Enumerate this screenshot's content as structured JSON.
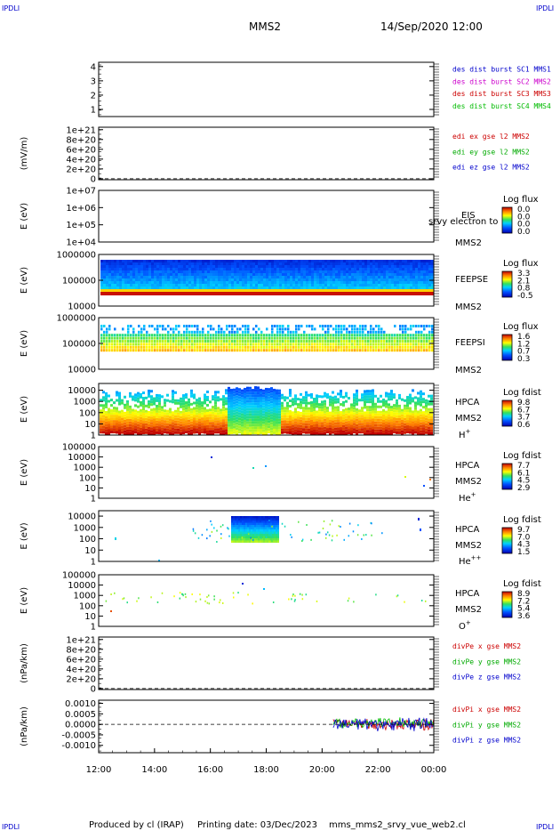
{
  "header": {
    "corner_left": "IPDLI",
    "corner_right": "IPDLI",
    "spacecraft": "MMS2",
    "datetime": "14/Sep/2020 12:00"
  },
  "footer": {
    "corner_left": "IPDLI",
    "corner_right": "IPDLI",
    "producer": "Produced by cl (IRAP)",
    "print_date": "Printing date: 03/Dec/2023",
    "script_name": "mms_mms2_srvy_vue_web2.cl"
  },
  "chart_data": {
    "type": "line",
    "x_ticks": [
      "12:00",
      "14:00",
      "16:00",
      "18:00",
      "20:00",
      "22:00",
      "00:00"
    ],
    "x_range_hours": [
      12,
      24
    ],
    "panels": [
      {
        "id": "des-dist",
        "type": "line",
        "ylabel": "",
        "y_ticks": [
          "4",
          "3",
          "2",
          "1"
        ],
        "ylim": [
          0.5,
          4.3
        ],
        "legend": [
          {
            "text": "des dist burst SC1 MMS1",
            "color": "#0000cc"
          },
          {
            "text": "des dist burst SC2 MMS2",
            "color": "#cc00cc"
          },
          {
            "text": "des dist burst SC3 MMS3",
            "color": "#cc0000"
          },
          {
            "text": "des dist burst SC4 MMS4",
            "color": "#00bb00"
          }
        ]
      },
      {
        "id": "edi-e",
        "type": "line",
        "ylabel": "(mV/m)",
        "y_ticks": [
          "1e+21",
          "8e+20",
          "6e+20",
          "4e+20",
          "2e+20",
          "0"
        ],
        "ylim": [
          -2e+19,
          1.05e+21
        ],
        "zero_line": true,
        "legend": [
          {
            "text": "edi ex gse l2 MMS2",
            "color": "#cc0000"
          },
          {
            "text": "edi ey gse l2 MMS2",
            "color": "#00aa00"
          },
          {
            "text": "edi ez gse l2 MMS2",
            "color": "#0000cc"
          }
        ]
      },
      {
        "id": "eis",
        "type": "heatmap",
        "ylabel": "E (eV)",
        "y_ticks": [
          "1e+07",
          "1e+06",
          "1e+05",
          "1e+04"
        ],
        "yscale": "log",
        "ylim": [
          10000,
          10000000
        ],
        "instrument": "EIS",
        "spacecraft": "MMS2",
        "overlay_text": "srvy electron to",
        "colorbar": {
          "title": "Log flux",
          "ticks": [
            "0.0",
            "0.0",
            "0.0",
            "0.0"
          ]
        }
      },
      {
        "id": "feepse",
        "type": "heatmap",
        "ylabel": "E (eV)",
        "y_ticks": [
          "1000000",
          "100000",
          "10000"
        ],
        "yscale": "log",
        "ylim": [
          10000,
          1000000
        ],
        "instrument": "FEEPSE",
        "spacecraft": "MMS2",
        "colorbar": {
          "title": "Log flux",
          "ticks": [
            "3.3",
            "2.1",
            "0.8",
            "-0.5"
          ]
        }
      },
      {
        "id": "feepsi",
        "type": "heatmap",
        "ylabel": "E (eV)",
        "y_ticks": [
          "1000000",
          "100000",
          "10000"
        ],
        "yscale": "log",
        "ylim": [
          10000,
          1000000
        ],
        "instrument": "FEEPSI",
        "spacecraft": "MMS2",
        "colorbar": {
          "title": "Log flux",
          "ticks": [
            "1.6",
            "1.2",
            "0.7",
            "0.3"
          ]
        }
      },
      {
        "id": "hpca-h",
        "type": "heatmap",
        "ylabel": "E (eV)",
        "y_ticks": [
          "10000",
          "1000",
          "100",
          "10",
          "1"
        ],
        "yscale": "log",
        "ylim": [
          1,
          40000
        ],
        "instrument": "HPCA",
        "spacecraft": "MMS2",
        "species": "H",
        "charge": "+",
        "colorbar": {
          "title": "Log fdist",
          "ticks": [
            "9.8",
            "6.7",
            "3.7",
            "0.6"
          ]
        }
      },
      {
        "id": "hpca-he",
        "type": "heatmap",
        "ylabel": "E (eV)",
        "y_ticks": [
          "100000",
          "10000",
          "1000",
          "100",
          "10",
          "1"
        ],
        "yscale": "log",
        "ylim": [
          1,
          100000
        ],
        "instrument": "HPCA",
        "spacecraft": "MMS2",
        "species": "He",
        "charge": "+",
        "colorbar": {
          "title": "Log fdist",
          "ticks": [
            "7.7",
            "6.1",
            "4.5",
            "2.9"
          ]
        }
      },
      {
        "id": "hpca-he2",
        "type": "heatmap",
        "ylabel": "E (eV)",
        "y_ticks": [
          "10000",
          "1000",
          "100",
          "10",
          "1"
        ],
        "yscale": "log",
        "ylim": [
          1,
          30000
        ],
        "instrument": "HPCA",
        "spacecraft": "MMS2",
        "species": "He",
        "charge": "++",
        "colorbar": {
          "title": "Log fdist",
          "ticks": [
            "9.7",
            "7.0",
            "4.3",
            "1.5"
          ]
        }
      },
      {
        "id": "hpca-o",
        "type": "heatmap",
        "ylabel": "E (eV)",
        "y_ticks": [
          "100000",
          "10000",
          "1000",
          "100",
          "10",
          "1"
        ],
        "yscale": "log",
        "ylim": [
          1,
          100000
        ],
        "instrument": "HPCA",
        "spacecraft": "MMS2",
        "species": "O",
        "charge": "+",
        "colorbar": {
          "title": "Log fdist",
          "ticks": [
            "8.9",
            "7.2",
            "5.4",
            "3.6"
          ]
        }
      },
      {
        "id": "divpe",
        "type": "line",
        "ylabel": "(nPa/km)",
        "y_ticks": [
          "1e+21",
          "8e+20",
          "6e+20",
          "4e+20",
          "2e+20",
          "0"
        ],
        "ylim": [
          -2e+19,
          1.05e+21
        ],
        "zero_line": true,
        "legend": [
          {
            "text": "divPe x gse MMS2",
            "color": "#cc0000"
          },
          {
            "text": "divPe y gse MMS2",
            "color": "#00aa00"
          },
          {
            "text": "divPe z gse MMS2",
            "color": "#0000cc"
          }
        ]
      },
      {
        "id": "divpi",
        "type": "line",
        "ylabel": "(nPa/km)",
        "y_ticks": [
          "0.0010",
          "0.0005",
          "0.0000",
          "-0.0005",
          "-0.0010"
        ],
        "ylim": [
          -0.00135,
          0.00115
        ],
        "zero_line": true,
        "data_start_hour": 20.4,
        "legend": [
          {
            "text": "divPi x gse MMS2",
            "color": "#cc0000"
          },
          {
            "text": "divPi y gse MMS2",
            "color": "#00aa00"
          },
          {
            "text": "divPi z gse MMS2",
            "color": "#0000cc"
          }
        ]
      }
    ]
  }
}
